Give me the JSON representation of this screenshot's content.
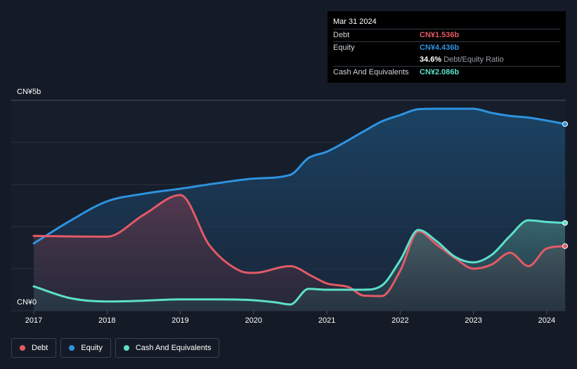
{
  "chart_data": {
    "type": "area",
    "title": "",
    "xlabel": "",
    "ylabel": "",
    "y_tick_labels": [
      "CN¥5b",
      "CN¥0"
    ],
    "x_tick_labels": [
      "2017",
      "2018",
      "2019",
      "2020",
      "2021",
      "2022",
      "2023",
      "2024"
    ],
    "ylim": [
      0,
      5
    ],
    "xlim": [
      2017.0,
      2024.25
    ],
    "grid": true,
    "legend_position": "bottom-left",
    "series": [
      {
        "name": "Debt",
        "color": "#e35a66",
        "x": [
          2017.0,
          2018.0,
          2018.5,
          2019.0,
          2019.4,
          2019.8,
          2020.0,
          2020.5,
          2020.8,
          2021.0,
          2021.3,
          2021.5,
          2021.75,
          2022.0,
          2022.25,
          2022.5,
          2022.75,
          2023.0,
          2023.25,
          2023.5,
          2023.75,
          2024.0,
          2024.25
        ],
        "values": [
          1.78,
          1.76,
          2.28,
          2.75,
          1.55,
          0.96,
          0.9,
          1.06,
          0.82,
          0.65,
          0.56,
          0.36,
          0.35,
          0.95,
          1.89,
          1.57,
          1.25,
          1.0,
          1.1,
          1.38,
          1.06,
          1.48,
          1.536
        ]
      },
      {
        "name": "Equity",
        "color": "#2e93e0",
        "x": [
          2017.0,
          2017.5,
          2018.0,
          2018.5,
          2019.0,
          2019.5,
          2020.0,
          2020.5,
          2020.75,
          2021.0,
          2021.5,
          2021.75,
          2022.0,
          2022.25,
          2022.5,
          2023.0,
          2023.25,
          2023.5,
          2023.75,
          2024.0,
          2024.25
        ],
        "values": [
          1.6,
          2.14,
          2.6,
          2.78,
          2.9,
          3.03,
          3.14,
          3.23,
          3.63,
          3.78,
          4.26,
          4.5,
          4.65,
          4.79,
          4.8,
          4.8,
          4.7,
          4.63,
          4.59,
          4.52,
          4.436
        ]
      },
      {
        "name": "Cash And Equivalents",
        "color": "#5ce0c9",
        "x": [
          2017.0,
          2017.5,
          2018.0,
          2018.5,
          2019.0,
          2019.5,
          2020.0,
          2020.3,
          2020.5,
          2020.75,
          2021.0,
          2021.5,
          2021.75,
          2022.0,
          2022.25,
          2022.5,
          2022.75,
          2023.0,
          2023.25,
          2023.5,
          2023.75,
          2024.0,
          2024.25
        ],
        "values": [
          0.58,
          0.3,
          0.22,
          0.24,
          0.27,
          0.27,
          0.25,
          0.2,
          0.15,
          0.52,
          0.5,
          0.5,
          0.6,
          1.2,
          1.92,
          1.65,
          1.28,
          1.15,
          1.33,
          1.78,
          2.15,
          2.11,
          2.086
        ]
      }
    ]
  },
  "tooltip": {
    "date": "Mar 31 2024",
    "debt_label": "Debt",
    "debt_value": "CN¥1.536b",
    "equity_label": "Equity",
    "equity_value": "CN¥4.436b",
    "ratio_value": "34.6%",
    "ratio_text": "Debt/Equity Ratio",
    "cash_label": "Cash And Equivalents",
    "cash_value": "CN¥2.086b"
  },
  "legend": [
    {
      "label": "Debt",
      "color": "#e35a66"
    },
    {
      "label": "Equity",
      "color": "#2e93e0"
    },
    {
      "label": "Cash And Equivalents",
      "color": "#5ce0c9"
    }
  ]
}
